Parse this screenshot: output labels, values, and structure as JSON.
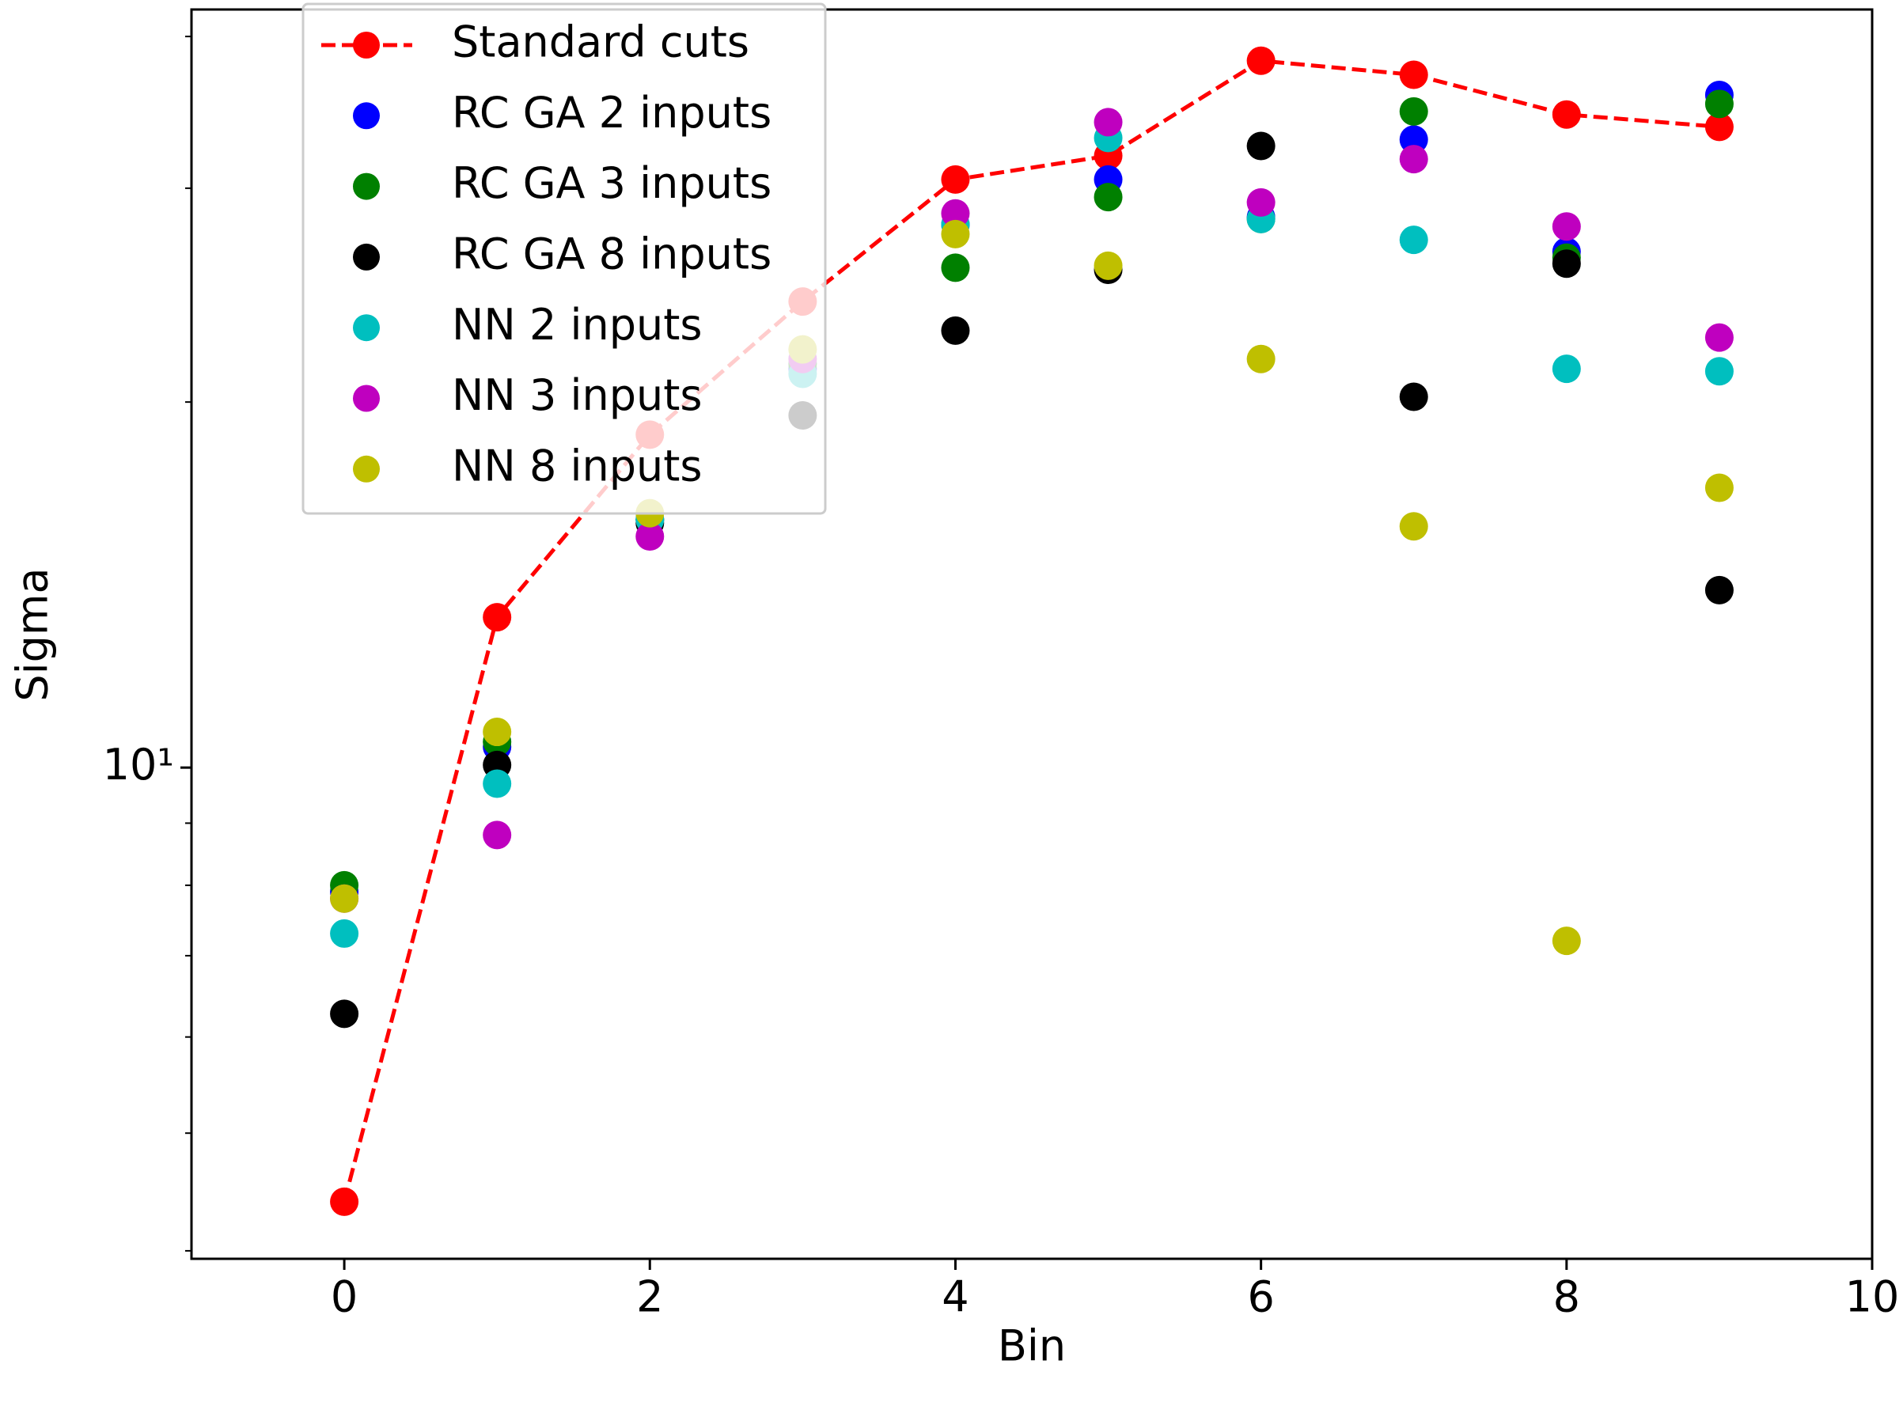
{
  "chart_data": {
    "type": "scatter",
    "x_label": "Bin",
    "y_label": "Sigma",
    "x": [
      0,
      1,
      2,
      3,
      4,
      5,
      6,
      7,
      8,
      9
    ],
    "xlim": [
      -1,
      10
    ],
    "xticks": [
      0,
      2,
      4,
      6,
      8,
      10
    ],
    "ylim": [
      3.94,
      42.1
    ],
    "yticks": [
      {
        "value": 10,
        "label": "10¹"
      }
    ],
    "yminor_ticks": [
      4,
      5,
      6,
      7,
      8,
      9,
      20,
      30,
      40
    ],
    "log_y": true,
    "grid": false,
    "legend": "upper left",
    "series": [
      {
        "name": "Standard cuts",
        "color": "#ff0000",
        "line": "dashed",
        "values": [
          4.39,
          13.3,
          18.8,
          24.2,
          30.5,
          31.9,
          38.2,
          37.2,
          34.5,
          33.7
        ]
      },
      {
        "name": "RC GA 2 inputs",
        "color": "#0000ff",
        "values": [
          7.9,
          10.4,
          16.0,
          21.3,
          28.0,
          30.5,
          28.4,
          32.9,
          26.6,
          35.8
        ]
      },
      {
        "name": "RC GA 3 inputs",
        "color": "#008000",
        "values": [
          8.0,
          10.5,
          16.0,
          21.5,
          25.8,
          29.5,
          28.3,
          34.7,
          26.3,
          35.2
        ]
      },
      {
        "name": "RC GA 8 inputs",
        "color": "#000000",
        "values": [
          6.27,
          10.05,
          15.9,
          19.5,
          22.9,
          25.7,
          32.5,
          20.2,
          26.0,
          14.0
        ]
      },
      {
        "name": "NN 2 inputs",
        "color": "#00bfbf",
        "values": [
          7.3,
          9.7,
          16.0,
          21.1,
          28.0,
          33.0,
          28.3,
          27.2,
          21.3,
          21.2
        ]
      },
      {
        "name": "NN 3 inputs",
        "color": "#bf00bf",
        "values": [
          7.8,
          8.8,
          15.5,
          21.7,
          28.6,
          34.0,
          29.2,
          31.7,
          27.9,
          22.6
        ]
      },
      {
        "name": "NN 8 inputs",
        "color": "#bfbf00",
        "values": [
          7.8,
          10.7,
          16.2,
          22.1,
          27.5,
          25.9,
          21.7,
          15.8,
          7.2,
          17.0
        ]
      }
    ]
  }
}
